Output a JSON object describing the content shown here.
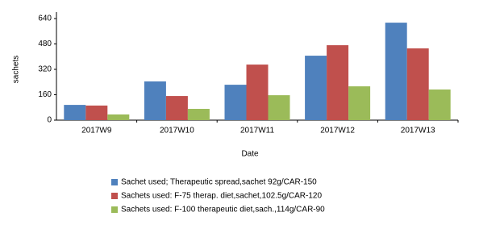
{
  "chart_data": {
    "type": "bar",
    "categories": [
      "2017W9",
      "2017W10",
      "2017W11",
      "2017W12",
      "2017W13"
    ],
    "series": [
      {
        "name": "Sachet used; Therapeutic spread,sachet 92g/CAR-150",
        "color": "#4f81bd",
        "values": [
          96,
          244,
          223,
          406,
          614
        ]
      },
      {
        "name": "Sachets used: F-75 therap. diet,sachet,102.5g/CAR-120",
        "color": "#c0504d",
        "values": [
          92,
          152,
          350,
          472,
          452
        ]
      },
      {
        "name": "Sachets used: F-100 therapeutic diet,sach.,114g/CAR-90",
        "color": "#9bbb59",
        "values": [
          36,
          71,
          157,
          213,
          193
        ]
      }
    ],
    "xlabel": "Date",
    "ylabel": "sachets",
    "ylim": [
      0,
      640
    ],
    "yticks": [
      0,
      160,
      320,
      480,
      640
    ],
    "grid": false
  }
}
